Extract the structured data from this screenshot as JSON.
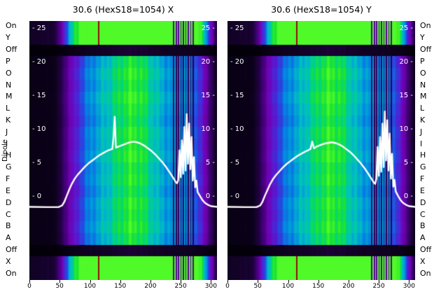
{
  "figure": {
    "background": "#ffffff",
    "y_axis_label": "Dipole",
    "dipole_labels": [
      "On",
      "Y",
      "Off",
      "P",
      "O",
      "N",
      "M",
      "L",
      "K",
      "J",
      "I",
      "H",
      "G",
      "F",
      "E",
      "D",
      "C",
      "B",
      "A",
      "Off",
      "X",
      "On"
    ],
    "row_types": [
      "hot",
      "hot",
      "off",
      "main",
      "main",
      "main",
      "main",
      "main",
      "main",
      "main",
      "main",
      "main",
      "main",
      "main",
      "main",
      "main",
      "main",
      "main",
      "main",
      "off",
      "hot",
      "hot"
    ],
    "row_gains": [
      1,
      1,
      1,
      0.97,
      1.03,
      0.99,
      1.05,
      1.0,
      0.96,
      1.02,
      1.0,
      1.04,
      0.98,
      1.01,
      0.96,
      1.02,
      0.99,
      1.03,
      0.97,
      1,
      1,
      1
    ],
    "inner_tick_values": [
      25,
      20,
      15,
      10,
      5,
      0
    ],
    "x_tick_values": [
      0,
      50,
      100,
      150,
      200,
      250,
      300
    ],
    "colors": {
      "curve": "#ffffff",
      "inner_tick_text": "#ffffff",
      "axis_text": "#000000",
      "red_stripe": "#960808"
    },
    "colormap_stops": [
      [
        0.0,
        [
          2,
          0,
          8
        ]
      ],
      [
        0.07,
        [
          18,
          2,
          38
        ]
      ],
      [
        0.18,
        [
          58,
          0,
          110
        ]
      ],
      [
        0.3,
        [
          112,
          0,
          178
        ]
      ],
      [
        0.4,
        [
          92,
          22,
          205
        ]
      ],
      [
        0.5,
        [
          38,
          72,
          225
        ]
      ],
      [
        0.6,
        [
          0,
          138,
          225
        ]
      ],
      [
        0.7,
        [
          0,
          188,
          198
        ]
      ],
      [
        0.8,
        [
          0,
          212,
          128
        ]
      ],
      [
        0.9,
        [
          28,
          228,
          48
        ]
      ],
      [
        1.0,
        [
          80,
          250,
          40
        ]
      ]
    ]
  },
  "chart_data": [
    {
      "type": "heatmap",
      "title": "30.6 (HexS18=1054) X",
      "xlabel": "",
      "ylabel": "Dipole",
      "x_range": [
        0,
        310
      ],
      "x_ticks": [
        0,
        50,
        100,
        150,
        200,
        250,
        300
      ],
      "value_ticks": [
        25,
        20,
        15,
        10,
        5,
        0
      ],
      "y_categories": [
        "On",
        "Y",
        "Off",
        "P",
        "O",
        "N",
        "M",
        "L",
        "K",
        "J",
        "I",
        "H",
        "G",
        "F",
        "E",
        "D",
        "C",
        "B",
        "A",
        "Off",
        "X",
        "On"
      ],
      "legend": "none",
      "grid": false,
      "intensity_profile": [
        [
          0,
          0.03
        ],
        [
          40,
          0.04
        ],
        [
          50,
          0.1
        ],
        [
          58,
          0.2
        ],
        [
          66,
          0.3
        ],
        [
          76,
          0.4
        ],
        [
          86,
          0.5
        ],
        [
          96,
          0.57
        ],
        [
          106,
          0.62
        ],
        [
          118,
          0.67
        ],
        [
          130,
          0.73
        ],
        [
          142,
          0.8
        ],
        [
          155,
          0.88
        ],
        [
          168,
          0.93
        ],
        [
          180,
          0.9
        ],
        [
          192,
          0.83
        ],
        [
          202,
          0.75
        ],
        [
          212,
          0.69
        ],
        [
          224,
          0.64
        ],
        [
          236,
          0.61
        ],
        [
          248,
          0.62
        ],
        [
          258,
          0.6
        ],
        [
          268,
          0.56
        ],
        [
          276,
          0.5
        ],
        [
          284,
          0.4
        ],
        [
          292,
          0.28
        ],
        [
          300,
          0.16
        ],
        [
          306,
          0.07
        ],
        [
          310,
          0.04
        ]
      ],
      "dark_stripes": [
        238,
        242,
        246,
        250,
        254,
        258,
        262,
        266,
        270
      ],
      "red_stripes": [
        114
      ],
      "overlay_line": {
        "color": "#ffffff",
        "points": [
          [
            0,
            -1.4
          ],
          [
            30,
            -1.45
          ],
          [
            48,
            -1.45
          ],
          [
            54,
            -1.2
          ],
          [
            58,
            -0.6
          ],
          [
            62,
            0.3
          ],
          [
            66,
            1.2
          ],
          [
            70,
            2.0
          ],
          [
            75,
            2.8
          ],
          [
            80,
            3.4
          ],
          [
            86,
            4.0
          ],
          [
            92,
            4.6
          ],
          [
            98,
            5.1
          ],
          [
            104,
            5.5
          ],
          [
            110,
            5.9
          ],
          [
            116,
            6.3
          ],
          [
            122,
            6.6
          ],
          [
            128,
            6.9
          ],
          [
            133,
            7.1
          ],
          [
            137,
            7.2
          ],
          [
            139,
            9.0
          ],
          [
            141,
            12.0
          ],
          [
            143,
            7.4
          ],
          [
            148,
            7.6
          ],
          [
            154,
            7.8
          ],
          [
            160,
            8.0
          ],
          [
            166,
            8.2
          ],
          [
            172,
            8.3
          ],
          [
            178,
            8.2
          ],
          [
            184,
            8.0
          ],
          [
            190,
            7.7
          ],
          [
            196,
            7.3
          ],
          [
            202,
            6.9
          ],
          [
            208,
            6.4
          ],
          [
            214,
            5.8
          ],
          [
            220,
            5.2
          ],
          [
            226,
            4.5
          ],
          [
            232,
            3.7
          ],
          [
            237,
            3.0
          ],
          [
            241,
            2.4
          ],
          [
            244,
            2.1
          ],
          [
            246,
            2.6
          ],
          [
            248,
            7.0
          ],
          [
            250,
            3.0
          ],
          [
            252,
            8.5
          ],
          [
            254,
            3.5
          ],
          [
            256,
            10.5
          ],
          [
            258,
            4.0
          ],
          [
            260,
            12.4
          ],
          [
            262,
            5.0
          ],
          [
            264,
            11.0
          ],
          [
            266,
            4.2
          ],
          [
            268,
            9.0
          ],
          [
            270,
            2.5
          ],
          [
            272,
            6.0
          ],
          [
            274,
            1.5
          ],
          [
            276,
            2.5
          ],
          [
            278,
            0.8
          ],
          [
            282,
            0.2
          ],
          [
            286,
            -0.4
          ],
          [
            290,
            -0.8
          ],
          [
            295,
            -1.1
          ],
          [
            300,
            -1.3
          ],
          [
            310,
            -1.4
          ]
        ]
      }
    },
    {
      "type": "heatmap",
      "title": "30.6 (HexS18=1054) Y",
      "xlabel": "",
      "ylabel": "Dipole",
      "x_range": [
        0,
        310
      ],
      "x_ticks": [
        0,
        50,
        100,
        150,
        200,
        250,
        300
      ],
      "value_ticks": [
        25,
        20,
        15,
        10,
        5,
        0
      ],
      "y_categories": [
        "On",
        "Y",
        "Off",
        "P",
        "O",
        "N",
        "M",
        "L",
        "K",
        "J",
        "I",
        "H",
        "G",
        "F",
        "E",
        "D",
        "C",
        "B",
        "A",
        "Off",
        "X",
        "On"
      ],
      "legend": "none",
      "grid": false,
      "intensity_profile": [
        [
          0,
          0.03
        ],
        [
          40,
          0.04
        ],
        [
          50,
          0.1
        ],
        [
          58,
          0.2
        ],
        [
          66,
          0.3
        ],
        [
          76,
          0.4
        ],
        [
          86,
          0.5
        ],
        [
          96,
          0.57
        ],
        [
          106,
          0.62
        ],
        [
          118,
          0.67
        ],
        [
          130,
          0.73
        ],
        [
          142,
          0.8
        ],
        [
          155,
          0.88
        ],
        [
          168,
          0.93
        ],
        [
          180,
          0.9
        ],
        [
          192,
          0.83
        ],
        [
          202,
          0.75
        ],
        [
          212,
          0.69
        ],
        [
          224,
          0.64
        ],
        [
          236,
          0.61
        ],
        [
          248,
          0.62
        ],
        [
          258,
          0.6
        ],
        [
          268,
          0.56
        ],
        [
          276,
          0.5
        ],
        [
          284,
          0.4
        ],
        [
          292,
          0.28
        ],
        [
          300,
          0.16
        ],
        [
          306,
          0.07
        ],
        [
          310,
          0.04
        ]
      ],
      "dark_stripes": [
        238,
        242,
        246,
        250,
        254,
        258,
        262,
        266,
        270
      ],
      "red_stripes": [
        114
      ],
      "overlay_line": {
        "color": "#ffffff",
        "points": [
          [
            0,
            -1.4
          ],
          [
            30,
            -1.45
          ],
          [
            48,
            -1.45
          ],
          [
            54,
            -1.2
          ],
          [
            58,
            -0.6
          ],
          [
            62,
            0.3
          ],
          [
            66,
            1.1
          ],
          [
            70,
            1.9
          ],
          [
            75,
            2.7
          ],
          [
            80,
            3.3
          ],
          [
            86,
            3.9
          ],
          [
            92,
            4.5
          ],
          [
            98,
            5.0
          ],
          [
            104,
            5.4
          ],
          [
            110,
            5.8
          ],
          [
            116,
            6.2
          ],
          [
            122,
            6.5
          ],
          [
            128,
            6.8
          ],
          [
            133,
            7.0
          ],
          [
            137,
            7.2
          ],
          [
            140,
            8.3
          ],
          [
            143,
            7.3
          ],
          [
            148,
            7.6
          ],
          [
            154,
            7.8
          ],
          [
            160,
            8.0
          ],
          [
            166,
            8.1
          ],
          [
            172,
            8.2
          ],
          [
            178,
            8.1
          ],
          [
            184,
            7.9
          ],
          [
            190,
            7.6
          ],
          [
            196,
            7.2
          ],
          [
            202,
            6.8
          ],
          [
            208,
            6.3
          ],
          [
            214,
            5.7
          ],
          [
            220,
            5.1
          ],
          [
            226,
            4.4
          ],
          [
            232,
            3.6
          ],
          [
            237,
            2.9
          ],
          [
            241,
            2.3
          ],
          [
            244,
            2.0
          ],
          [
            246,
            2.8
          ],
          [
            248,
            7.5
          ],
          [
            250,
            3.2
          ],
          [
            252,
            9.0
          ],
          [
            254,
            3.8
          ],
          [
            256,
            11.0
          ],
          [
            258,
            4.5
          ],
          [
            260,
            12.8
          ],
          [
            262,
            5.5
          ],
          [
            264,
            11.5
          ],
          [
            266,
            4.0
          ],
          [
            268,
            9.5
          ],
          [
            270,
            2.8
          ],
          [
            272,
            6.5
          ],
          [
            274,
            1.6
          ],
          [
            276,
            2.6
          ],
          [
            278,
            0.9
          ],
          [
            282,
            0.2
          ],
          [
            286,
            -0.4
          ],
          [
            290,
            -0.8
          ],
          [
            295,
            -1.1
          ],
          [
            300,
            -1.3
          ],
          [
            310,
            -1.4
          ]
        ]
      }
    }
  ]
}
